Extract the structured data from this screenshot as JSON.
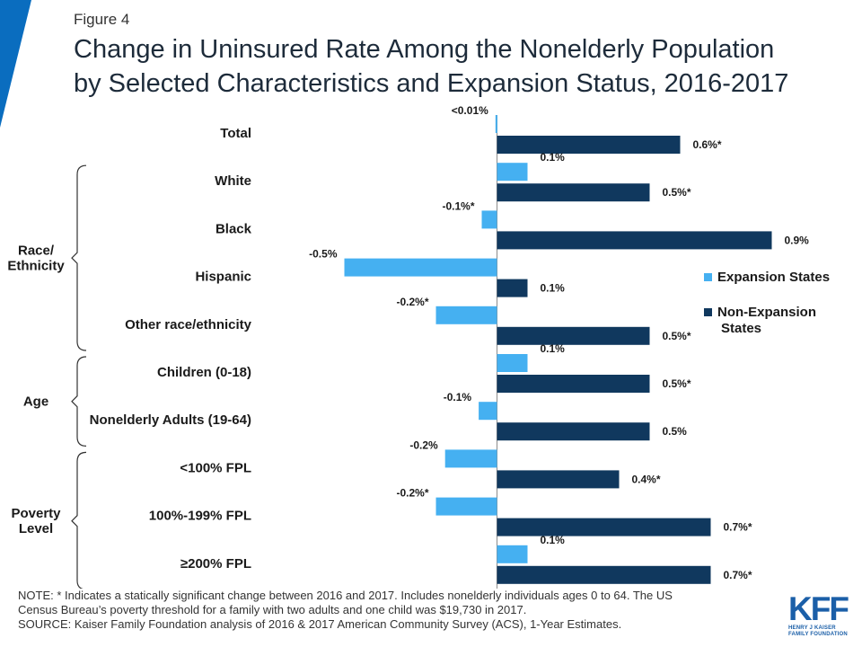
{
  "figure_label": "Figure 4",
  "title_lines": [
    "Change in Uninsured Rate Among the Nonelderly Population",
    "by Selected Characteristics and Expansion Status, 2016-2017"
  ],
  "colors": {
    "expansion": "#45b0f1",
    "non_expansion": "#10385e",
    "corner": "#0a6dbf",
    "bracket": "#333333"
  },
  "chart_data": {
    "type": "bar",
    "orientation": "horizontal",
    "unit": "percentage points",
    "categories": [
      "Total",
      "White",
      "Black",
      "Hispanic",
      "Other race/ethnicity",
      "Children (0-18)",
      "Nonelderly Adults (19-64)",
      "<100% FPL",
      "100%-199% FPL",
      "≥200% FPL"
    ],
    "series": [
      {
        "name": "Expansion States",
        "values": [
          -0.005,
          0.1,
          -0.05,
          -0.5,
          -0.2,
          0.1,
          -0.06,
          -0.17,
          -0.2,
          0.1
        ],
        "labels": [
          "<0.01%",
          "0.1%",
          "-0.1%*",
          "-0.5%",
          "-0.2%*",
          "0.1%",
          "-0.1%",
          "-0.2%",
          "-0.2%*",
          "0.1%"
        ]
      },
      {
        "name": "Non-Expansion States",
        "values": [
          0.6,
          0.5,
          0.9,
          0.1,
          0.5,
          0.5,
          0.5,
          0.4,
          0.7,
          0.7
        ],
        "labels": [
          "0.6%*",
          "0.5%*",
          "0.9%",
          "0.1%",
          "0.5%*",
          "0.5%*",
          "0.5%",
          "0.4%*",
          "0.7%*",
          "0.7%*"
        ]
      }
    ],
    "legend_lines": [
      [
        "Expansion States"
      ],
      [
        "Non-Expansion",
        "States"
      ]
    ],
    "legend_position": "right",
    "groups": [
      {
        "label_lines": [
          "Race/",
          "Ethnicity"
        ],
        "from": 1,
        "to": 4
      },
      {
        "label_lines": [
          "Age"
        ],
        "from": 5,
        "to": 6
      },
      {
        "label_lines": [
          "Poverty",
          "Level"
        ],
        "from": 7,
        "to": 9
      }
    ],
    "xlim": [
      -0.52,
      0.92
    ]
  },
  "note_lines": [
    "NOTE: * Indicates a statically significant change between 2016 and 2017. Includes nonelderly individuals ages 0 to 64. The US",
    "Census Bureau’s poverty threshold for a family with two adults and one child was $19,730 in 2017.",
    "SOURCE: Kaiser Family Foundation analysis of 2016 & 2017 American Community Survey (ACS), 1-Year Estimates."
  ],
  "logo": {
    "mark": "KFF",
    "sub_lines": [
      "HENRY J KAISER",
      "FAMILY FOUNDATION"
    ]
  }
}
